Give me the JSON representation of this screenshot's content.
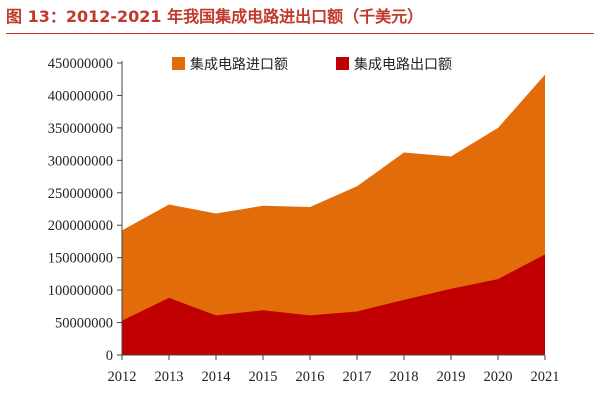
{
  "title": "图 13：2012-2021 年我国集成电路进出口额（千美元）",
  "chart_data": {
    "type": "area",
    "title": "图 13：2012-2021 年我国集成电路进出口额（千美元）",
    "x": [
      "2012",
      "2013",
      "2014",
      "2015",
      "2016",
      "2017",
      "2018",
      "2019",
      "2020",
      "2021"
    ],
    "series": [
      {
        "name": "集成电路进口额",
        "color": "#e36c0a",
        "values": [
          192000000,
          232000000,
          218000000,
          230000000,
          228000000,
          260000000,
          312000000,
          306000000,
          350000000,
          432000000
        ]
      },
      {
        "name": "集成电路出口额",
        "color": "#c00000",
        "values": [
          53000000,
          88000000,
          61000000,
          69000000,
          61000000,
          67000000,
          85000000,
          102000000,
          117000000,
          155000000
        ]
      }
    ],
    "ylim": [
      0,
      450000000
    ],
    "yticks": [
      "0",
      "50000000",
      "100000000",
      "150000000",
      "200000000",
      "250000000",
      "300000000",
      "350000000",
      "400000000",
      "450000000"
    ],
    "legend_position": "top",
    "grid": false
  }
}
